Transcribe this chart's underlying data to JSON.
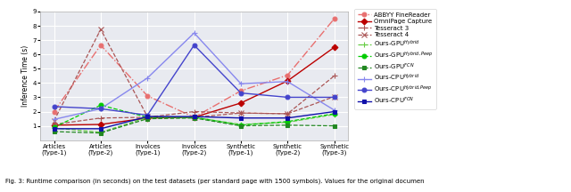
{
  "x_labels": [
    "Articles\n(Type-1)",
    "Articles\n(Type-2)",
    "Invoices\n(Type-1)",
    "Invoices\n(Type-2)",
    "Synthetic\n(Type-1)",
    "Synthetic\n(Type-2)",
    "Synthetic\n(Type-3)"
  ],
  "series": [
    {
      "label": "ABBYY FineReader",
      "color": "#e87070",
      "marker": "o",
      "linestyle": "-.",
      "linewidth": 1.0,
      "markersize": 3.5,
      "values": [
        2.0,
        6.65,
        3.1,
        1.6,
        3.45,
        4.55,
        8.5
      ]
    },
    {
      "label": "OmniPage Capture",
      "color": "#bb0000",
      "marker": "D",
      "linestyle": "-",
      "linewidth": 1.0,
      "markersize": 3.5,
      "values": [
        1.05,
        1.1,
        1.55,
        1.6,
        2.6,
        4.15,
        6.5
      ]
    },
    {
      "label": "Tesseract 3",
      "color": "#aa5555",
      "marker": "+",
      "linestyle": "--",
      "linewidth": 0.9,
      "markersize": 4,
      "values": [
        1.1,
        1.55,
        1.6,
        2.0,
        1.9,
        1.85,
        4.5
      ]
    },
    {
      "label": "Tesseract 4",
      "color": "#aa5555",
      "marker": "x",
      "linestyle": "--",
      "linewidth": 0.9,
      "markersize": 4,
      "values": [
        1.35,
        7.75,
        1.65,
        1.6,
        1.9,
        1.85,
        3.05
      ]
    },
    {
      "label": "Ours-GPU$^{Hybrid}$",
      "color": "#66cc44",
      "marker": "+",
      "linestyle": "--",
      "linewidth": 0.9,
      "markersize": 4,
      "values": [
        0.85,
        0.55,
        1.6,
        1.6,
        1.1,
        1.25,
        1.8
      ]
    },
    {
      "label": "Ours-GPU$^{Hybrid, Peep}$",
      "color": "#00cc00",
      "marker": "o",
      "linestyle": "--",
      "linewidth": 0.9,
      "markersize": 3.5,
      "values": [
        0.9,
        2.45,
        1.6,
        1.6,
        1.05,
        1.3,
        1.85
      ]
    },
    {
      "label": "Ours-GPU$^{FCN}$",
      "color": "#228822",
      "marker": "s",
      "linestyle": "--",
      "linewidth": 0.9,
      "markersize": 3,
      "values": [
        0.6,
        0.5,
        1.5,
        1.55,
        1.0,
        1.05,
        1.0
      ]
    },
    {
      "label": "Ours-CPU$^{Hybrid}$",
      "color": "#8888ee",
      "marker": "+",
      "linestyle": "-",
      "linewidth": 1.0,
      "markersize": 4,
      "values": [
        1.45,
        2.2,
        4.35,
        7.5,
        3.95,
        4.1,
        2.1
      ]
    },
    {
      "label": "Ours-CPU$^{Hybrid, Peep}$",
      "color": "#4444cc",
      "marker": "o",
      "linestyle": "-",
      "linewidth": 1.0,
      "markersize": 3.5,
      "values": [
        2.35,
        2.2,
        1.75,
        6.65,
        3.3,
        3.0,
        3.0
      ]
    },
    {
      "label": "Ours-CPU$^{FCN}$",
      "color": "#1111aa",
      "marker": "s",
      "linestyle": "-",
      "linewidth": 1.0,
      "markersize": 3,
      "values": [
        0.8,
        0.8,
        1.65,
        1.65,
        1.55,
        1.55,
        2.0
      ]
    }
  ],
  "ylabel": "Inference Time (s)",
  "ylim": [
    0,
    9
  ],
  "yticks": [
    1,
    2,
    3,
    4,
    5,
    6,
    7,
    8,
    9
  ],
  "bg_color": "#e8eaf0",
  "grid_color": "white",
  "figsize": [
    6.4,
    2.16
  ],
  "dpi": 100,
  "caption": "Fig. 3: Runtime comparison (in seconds) on the test datasets (per standard page with 1500 symbols). Values for the original documen"
}
